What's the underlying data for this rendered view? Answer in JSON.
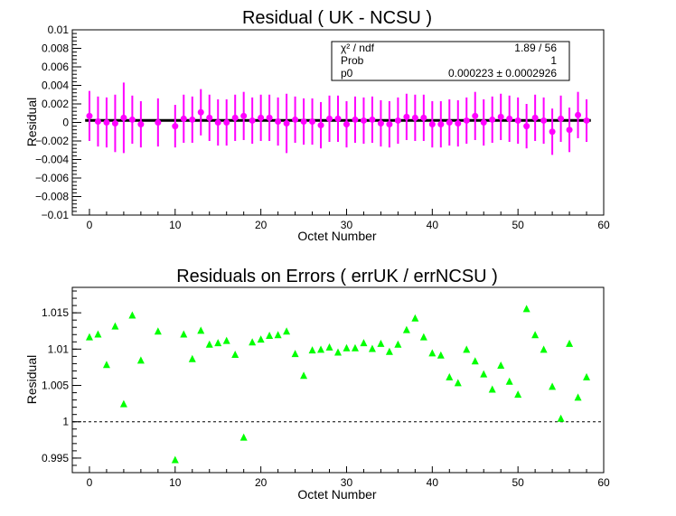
{
  "chart_data": [
    {
      "type": "scatter",
      "title": "Residual ( UK - NCSU )",
      "xlabel": "Octet Number",
      "ylabel": "Residual",
      "xlim": [
        -2,
        60
      ],
      "ylim": [
        -0.01,
        0.01
      ],
      "xticks": [
        "0",
        "10",
        "20",
        "30",
        "40",
        "50",
        "60"
      ],
      "yticks": [
        "−0.01",
        "−0.008",
        "−0.006",
        "−0.004",
        "−0.002",
        "0",
        "0.002",
        "0.004",
        "0.006",
        "0.008",
        "0.01"
      ],
      "marker_color": "#ff00ff",
      "fit_line": {
        "value": 0.000223,
        "color": "#000000"
      },
      "stats_box": {
        "rows": [
          {
            "label": "χ² / ndf",
            "value": "1.89 / 56"
          },
          {
            "label": "Prob",
            "value": "1"
          },
          {
            "label": "p0",
            "value": "0.000223 ± 0.0002926"
          }
        ]
      },
      "points": [
        [
          0,
          0.0007,
          0.0027
        ],
        [
          1,
          0.0001,
          0.0027
        ],
        [
          2,
          0.0,
          0.0027
        ],
        [
          3,
          -0.0001,
          0.0031
        ],
        [
          4,
          0.0005,
          0.0038
        ],
        [
          5,
          0.0003,
          0.0026
        ],
        [
          6,
          -0.0002,
          0.0025
        ],
        [
          8,
          0.0,
          0.0026
        ],
        [
          10,
          -0.0004,
          0.0023
        ],
        [
          11,
          0.0004,
          0.0026
        ],
        [
          12,
          0.0003,
          0.0025
        ],
        [
          13,
          0.0011,
          0.0025
        ],
        [
          14,
          0.0005,
          0.0025
        ],
        [
          15,
          0.0,
          0.0025
        ],
        [
          16,
          0.0,
          0.0025
        ],
        [
          17,
          0.0005,
          0.0025
        ],
        [
          18,
          0.0007,
          0.0026
        ],
        [
          19,
          0.0002,
          0.0025
        ],
        [
          20,
          0.0005,
          0.0025
        ],
        [
          21,
          0.0005,
          0.0025
        ],
        [
          22,
          0.0001,
          0.0026
        ],
        [
          23,
          -0.0001,
          0.0032
        ],
        [
          24,
          0.0003,
          0.0025
        ],
        [
          25,
          0.0001,
          0.0025
        ],
        [
          26,
          0.0001,
          0.0025
        ],
        [
          27,
          -0.0003,
          0.0025
        ],
        [
          28,
          0.0004,
          0.0025
        ],
        [
          29,
          0.0004,
          0.0025
        ],
        [
          30,
          -0.0002,
          0.0025
        ],
        [
          31,
          0.0003,
          0.0025
        ],
        [
          32,
          0.0002,
          0.0025
        ],
        [
          33,
          0.0003,
          0.0025
        ],
        [
          34,
          -0.0001,
          0.0025
        ],
        [
          35,
          -0.0002,
          0.0025
        ],
        [
          36,
          0.0002,
          0.0025
        ],
        [
          37,
          0.0006,
          0.0025
        ],
        [
          38,
          0.0005,
          0.0025
        ],
        [
          39,
          0.0005,
          0.0025
        ],
        [
          40,
          -0.0002,
          0.0025
        ],
        [
          41,
          -0.0002,
          0.0025
        ],
        [
          42,
          0.0,
          0.0025
        ],
        [
          43,
          -0.0001,
          0.0025
        ],
        [
          44,
          0.0002,
          0.0025
        ],
        [
          45,
          0.0007,
          0.0026
        ],
        [
          46,
          0.0,
          0.0025
        ],
        [
          47,
          0.0003,
          0.0025
        ],
        [
          48,
          0.0006,
          0.0025
        ],
        [
          49,
          0.0004,
          0.0025
        ],
        [
          50,
          0.0002,
          0.0025
        ],
        [
          51,
          -0.0004,
          0.0024
        ],
        [
          52,
          0.0005,
          0.0025
        ],
        [
          53,
          0.0002,
          0.0025
        ],
        [
          54,
          -0.001,
          0.0025
        ],
        [
          55,
          0.0004,
          0.0025
        ],
        [
          56,
          -0.0008,
          0.0024
        ],
        [
          57,
          0.0008,
          0.0025
        ],
        [
          58,
          0.0002,
          0.0023
        ]
      ]
    },
    {
      "type": "scatter",
      "title": "Residuals on Errors ( errUK / errNCSU )",
      "xlabel": "Octet Number",
      "ylabel": "Residual",
      "xlim": [
        -2,
        60
      ],
      "ylim": [
        0.993,
        1.0185
      ],
      "xticks": [
        "0",
        "10",
        "20",
        "30",
        "40",
        "50",
        "60"
      ],
      "yticks": [
        "0.995",
        "1",
        "1.005",
        "1.01",
        "1.015"
      ],
      "marker_color": "#00ff00",
      "reference_line": {
        "value": 1.0
      },
      "points": [
        [
          0,
          1.0117
        ],
        [
          1,
          1.0121
        ],
        [
          2,
          1.0079
        ],
        [
          3,
          1.0132
        ],
        [
          4,
          1.0025
        ],
        [
          5,
          1.0147
        ],
        [
          6,
          1.0085
        ],
        [
          8,
          1.0125
        ],
        [
          10,
          0.9948
        ],
        [
          11,
          1.0121
        ],
        [
          12,
          1.0087
        ],
        [
          13,
          1.0126
        ],
        [
          14,
          1.0107
        ],
        [
          15,
          1.0109
        ],
        [
          16,
          1.0112
        ],
        [
          17,
          1.0093
        ],
        [
          18,
          0.9979
        ],
        [
          19,
          1.011
        ],
        [
          20,
          1.0114
        ],
        [
          21,
          1.0119
        ],
        [
          22,
          1.012
        ],
        [
          23,
          1.0125
        ],
        [
          24,
          1.0094
        ],
        [
          25,
          1.0064
        ],
        [
          26,
          1.0099
        ],
        [
          27,
          1.01
        ],
        [
          28,
          1.0103
        ],
        [
          29,
          1.0096
        ],
        [
          30,
          1.0102
        ],
        [
          31,
          1.0102
        ],
        [
          32,
          1.0109
        ],
        [
          33,
          1.0101
        ],
        [
          34,
          1.0108
        ],
        [
          35,
          1.0097
        ],
        [
          36,
          1.0107
        ],
        [
          37,
          1.0127
        ],
        [
          38,
          1.0143
        ],
        [
          39,
          1.0117
        ],
        [
          40,
          1.0095
        ],
        [
          41,
          1.0092
        ],
        [
          42,
          1.0062
        ],
        [
          43,
          1.0054
        ],
        [
          44,
          1.01
        ],
        [
          45,
          1.0084
        ],
        [
          46,
          1.0066
        ],
        [
          47,
          1.0045
        ],
        [
          48,
          1.0078
        ],
        [
          49,
          1.0056
        ],
        [
          50,
          1.0038
        ],
        [
          51,
          1.0156
        ],
        [
          52,
          1.012
        ],
        [
          53,
          1.01
        ],
        [
          54,
          1.0049
        ],
        [
          55,
          1.0005
        ],
        [
          56,
          1.0108
        ],
        [
          57,
          1.0034
        ],
        [
          58,
          1.0062
        ]
      ]
    }
  ]
}
